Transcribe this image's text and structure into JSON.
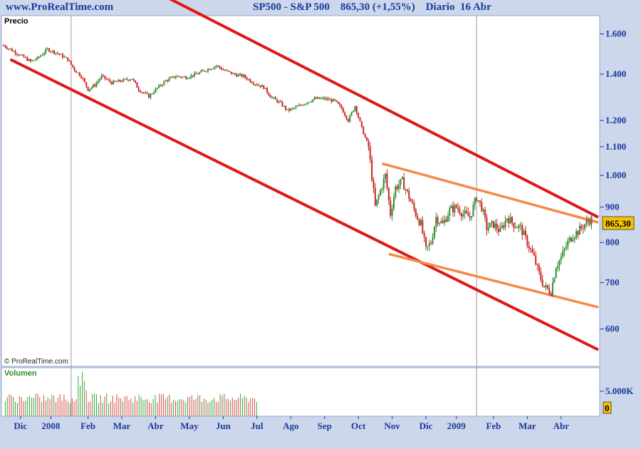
{
  "header": {
    "site": "www.ProRealTime.com",
    "title": "SP500 - S&P 500    865,30 (+1,55%)    Diario  16 Abr"
  },
  "price_panel": {
    "label": "Precio",
    "copyright": "© ProRealTime.com"
  },
  "volume_panel": {
    "label": "Volumen",
    "tick": "5.000K",
    "current": "0"
  },
  "colors": {
    "up": "#2e8b2e",
    "down": "#cc2222",
    "vol_up": "#3aa53a",
    "vol_down": "#d84a4a",
    "channel": "#e01818",
    "wedge": "#f58a4a",
    "axis_text": "#1a3a9c",
    "panel_bg": "#ffffff",
    "frame_bg": "#ccd7ec",
    "badge": "#f5c400"
  },
  "chart_data": {
    "type": "candlestick",
    "title": "SP500 - S&P 500",
    "last_price": 865.3,
    "last_price_label": "865,30",
    "change_pct": "+1,55%",
    "period": "Diario",
    "date": "16 Abr",
    "y_scale": "log",
    "y_ticks": [
      {
        "value": 1600,
        "label": "1.600"
      },
      {
        "value": 1400,
        "label": "1.400"
      },
      {
        "value": 1200,
        "label": "1.200"
      },
      {
        "value": 1100,
        "label": "1.100"
      },
      {
        "value": 1000,
        "label": "1.000"
      },
      {
        "value": 900,
        "label": "900"
      },
      {
        "value": 800,
        "label": "800"
      },
      {
        "value": 700,
        "label": "700"
      },
      {
        "value": 600,
        "label": "600"
      }
    ],
    "x_ticks": [
      {
        "t": 0.5,
        "label": "Dic"
      },
      {
        "t": 1.4,
        "label": "2008"
      },
      {
        "t": 2.5,
        "label": "Feb"
      },
      {
        "t": 3.5,
        "label": "Mar"
      },
      {
        "t": 4.5,
        "label": "Abr"
      },
      {
        "t": 5.5,
        "label": "May"
      },
      {
        "t": 6.5,
        "label": "Jun"
      },
      {
        "t": 7.5,
        "label": "Jul"
      },
      {
        "t": 8.5,
        "label": "Ago"
      },
      {
        "t": 9.5,
        "label": "Sep"
      },
      {
        "t": 10.5,
        "label": "Oct"
      },
      {
        "t": 11.5,
        "label": "Nov"
      },
      {
        "t": 12.5,
        "label": "Dic"
      },
      {
        "t": 13.4,
        "label": "2009"
      },
      {
        "t": 14.5,
        "label": "Feb"
      },
      {
        "t": 15.5,
        "label": "Mar"
      },
      {
        "t": 16.5,
        "label": "Abr"
      }
    ],
    "x_gridlines": [
      2.0,
      14.0
    ],
    "price_path": [
      [
        0.0,
        1540
      ],
      [
        0.4,
        1500
      ],
      [
        0.8,
        1460
      ],
      [
        1.0,
        1475
      ],
      [
        1.3,
        1520
      ],
      [
        1.6,
        1500
      ],
      [
        1.9,
        1470
      ],
      [
        2.1,
        1420
      ],
      [
        2.3,
        1390
      ],
      [
        2.5,
        1330
      ],
      [
        2.7,
        1350
      ],
      [
        2.9,
        1390
      ],
      [
        3.2,
        1360
      ],
      [
        3.5,
        1370
      ],
      [
        3.8,
        1380
      ],
      [
        4.0,
        1330
      ],
      [
        4.3,
        1300
      ],
      [
        4.5,
        1330
      ],
      [
        4.8,
        1370
      ],
      [
        5.1,
        1390
      ],
      [
        5.4,
        1385
      ],
      [
        5.7,
        1400
      ],
      [
        6.0,
        1420
      ],
      [
        6.3,
        1440
      ],
      [
        6.5,
        1420
      ],
      [
        6.8,
        1400
      ],
      [
        7.1,
        1390
      ],
      [
        7.4,
        1360
      ],
      [
        7.7,
        1340
      ],
      [
        7.9,
        1300
      ],
      [
        8.2,
        1270
      ],
      [
        8.4,
        1240
      ],
      [
        8.6,
        1250
      ],
      [
        8.9,
        1270
      ],
      [
        9.2,
        1290
      ],
      [
        9.5,
        1290
      ],
      [
        9.8,
        1280
      ],
      [
        10.0,
        1250
      ],
      [
        10.2,
        1200
      ],
      [
        10.4,
        1260
      ],
      [
        10.6,
        1170
      ],
      [
        10.8,
        1100
      ],
      [
        11.0,
        900
      ],
      [
        11.15,
        950
      ],
      [
        11.3,
        1000
      ],
      [
        11.45,
        880
      ],
      [
        11.6,
        960
      ],
      [
        11.8,
        980
      ],
      [
        12.0,
        930
      ],
      [
        12.2,
        880
      ],
      [
        12.35,
        850
      ],
      [
        12.5,
        780
      ],
      [
        12.65,
        800
      ],
      [
        12.8,
        870
      ],
      [
        13.0,
        850
      ],
      [
        13.2,
        890
      ],
      [
        13.4,
        900
      ],
      [
        13.6,
        880
      ],
      [
        13.8,
        870
      ],
      [
        14.0,
        930
      ],
      [
        14.15,
        900
      ],
      [
        14.3,
        840
      ],
      [
        14.5,
        850
      ],
      [
        14.7,
        830
      ],
      [
        14.9,
        870
      ],
      [
        15.1,
        850
      ],
      [
        15.3,
        840
      ],
      [
        15.5,
        800
      ],
      [
        15.7,
        760
      ],
      [
        15.85,
        720
      ],
      [
        16.0,
        690
      ],
      [
        16.2,
        680
      ],
      [
        16.35,
        740
      ],
      [
        16.5,
        760
      ],
      [
        16.7,
        800
      ],
      [
        16.85,
        820
      ],
      [
        17.0,
        830
      ],
      [
        17.2,
        850
      ],
      [
        17.4,
        865.3
      ]
    ],
    "trendlines": [
      {
        "type": "channel",
        "t1": 0.2,
        "p1": 1470,
        "t2": 17.6,
        "p2": 560
      },
      {
        "type": "channel",
        "t1": 4.9,
        "p1": 1800,
        "t2": 17.6,
        "p2": 870
      },
      {
        "type": "wedge",
        "t1": 11.2,
        "p1": 1040,
        "t2": 17.6,
        "p2": 855
      },
      {
        "type": "wedge",
        "t1": 11.4,
        "p1": 770,
        "t2": 17.6,
        "p2": 645
      }
    ],
    "volume": {
      "max_label": "5.000K",
      "end_t": 7.5,
      "series_note": ""
    }
  }
}
